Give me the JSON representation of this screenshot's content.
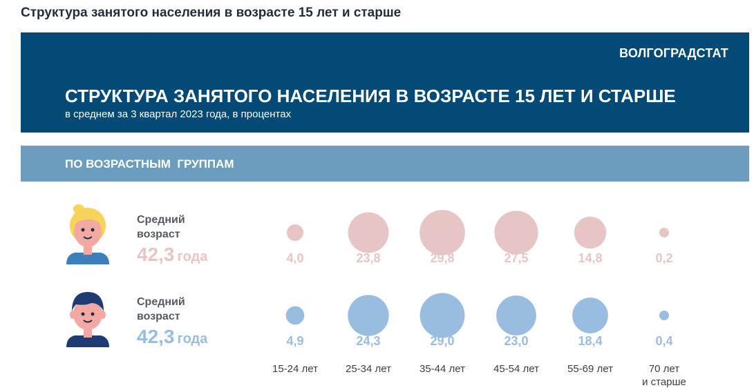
{
  "page_title": "Структура занятого населения в возрасте 15 лет и старше",
  "header": {
    "org": "ВОЛГОГРАДСТАТ",
    "title": "СТРУКТУРА ЗАНЯТОГО НАСЕЛЕНИЯ В ВОЗРАСТЕ 15 ЛЕТ И СТАРШЕ",
    "subtitle": "в среднем за 3 квартал 2023 года, в процентах"
  },
  "section": {
    "label": "ПО ВОЗРАСТНЫМ  ГРУППАМ"
  },
  "colors": {
    "female": "#e8c5c5",
    "female_text": "#e8c5c5",
    "male": "#98bde0",
    "male_text": "#98bde0",
    "banner": "#034a76",
    "section": "#6b9dbe"
  },
  "female": {
    "label": "Средний\nвозраст",
    "value": "42,3",
    "unit": "года"
  },
  "male": {
    "label": "Средний\nвозраст",
    "value": "42,3",
    "unit": "года"
  },
  "chart_data": {
    "type": "bubble",
    "categories": [
      "15-24 лет",
      "25-34 лет",
      "35-44 лет",
      "45-54 лет",
      "55-69 лет",
      "70 лет\nи старше"
    ],
    "series": [
      {
        "values": [
          4.0,
          23.8,
          29.8,
          27.5,
          14.8,
          0.2
        ],
        "labels": [
          "4,0",
          "23,8",
          "29,8",
          "27,5",
          "14,8",
          "0,2"
        ]
      },
      {
        "values": [
          4.9,
          24.3,
          29.0,
          23.0,
          18.4,
          0.4
        ],
        "labels": [
          "4,9",
          "24,3",
          "29,0",
          "23,0",
          "18,4",
          "0,4"
        ]
      }
    ]
  }
}
